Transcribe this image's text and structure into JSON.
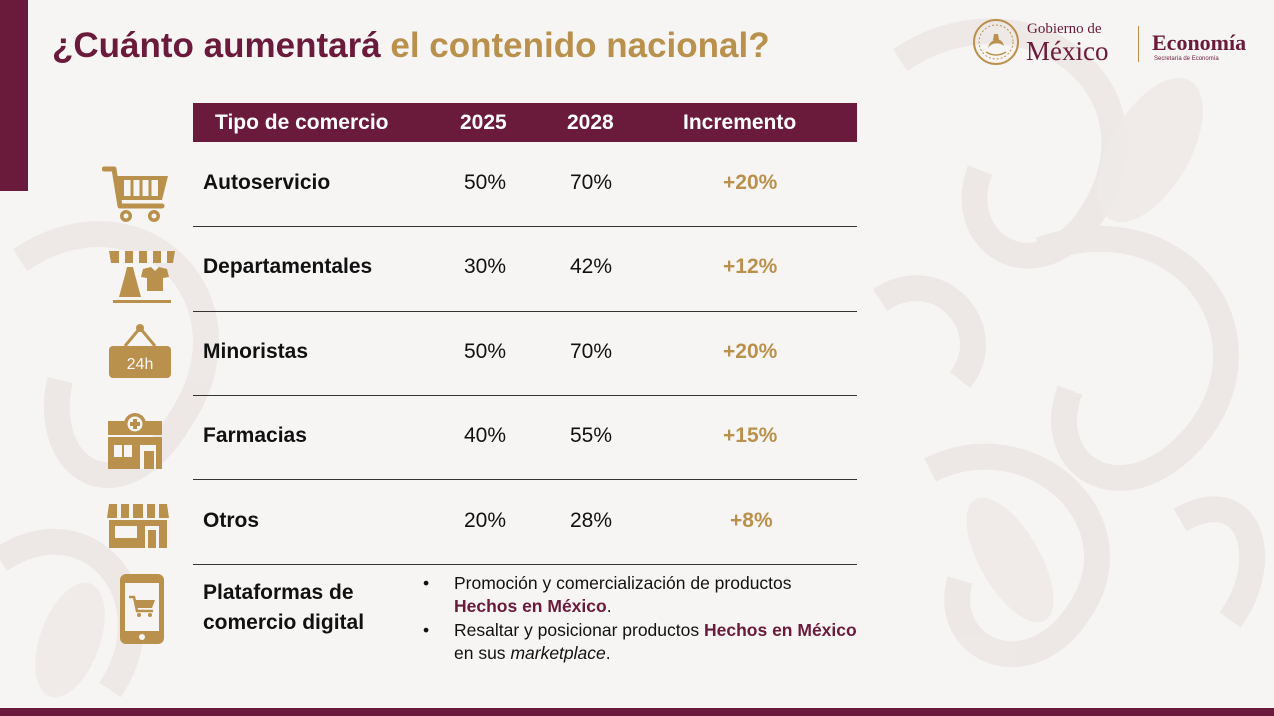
{
  "title": {
    "part1": "¿Cuánto aumentará",
    "part2": "el contenido nacional?"
  },
  "logo": {
    "gobierno": "Gobierno de",
    "mexico": "México",
    "economia": "Economía",
    "secretaria": "Secretaría de Economía"
  },
  "table": {
    "headers": [
      "Tipo de comercio",
      "2025",
      "2028",
      "Incremento"
    ],
    "rows": [
      {
        "tipo": "Autoservicio",
        "y2025": "50%",
        "y2028": "70%",
        "incremento": "+20%",
        "icon": "shopping-cart-icon"
      },
      {
        "tipo": "Departamentales",
        "y2025": "30%",
        "y2028": "42%",
        "incremento": "+12%",
        "icon": "clothing-store-icon"
      },
      {
        "tipo": "Minoristas",
        "y2025": "50%",
        "y2028": "70%",
        "incremento": "+20%",
        "icon": "sign-24h-icon",
        "icon_text": "24h"
      },
      {
        "tipo": "Farmacias",
        "y2025": "40%",
        "y2028": "55%",
        "incremento": "+15%",
        "icon": "pharmacy-icon"
      },
      {
        "tipo": "Otros",
        "y2025": "20%",
        "y2028": "28%",
        "incremento": "+8%",
        "icon": "storefront-icon"
      }
    ]
  },
  "digital": {
    "label_line1": "Plataformas de",
    "label_line2": "comercio digital",
    "icon": "mobile-shopping-icon",
    "bullet1": {
      "text": "Promoción y comercialización de productos",
      "highlight": "Hechos en México",
      "end": "."
    },
    "bullet2": {
      "text": "Resaltar y posicionar productos",
      "highlight": "Hechos en México",
      "mid": "en sus",
      "italic": "marketplace",
      "end": "."
    }
  },
  "colors": {
    "primary": "#6a1a3a",
    "accent": "#b9914d",
    "background": "#f7f5f4"
  }
}
